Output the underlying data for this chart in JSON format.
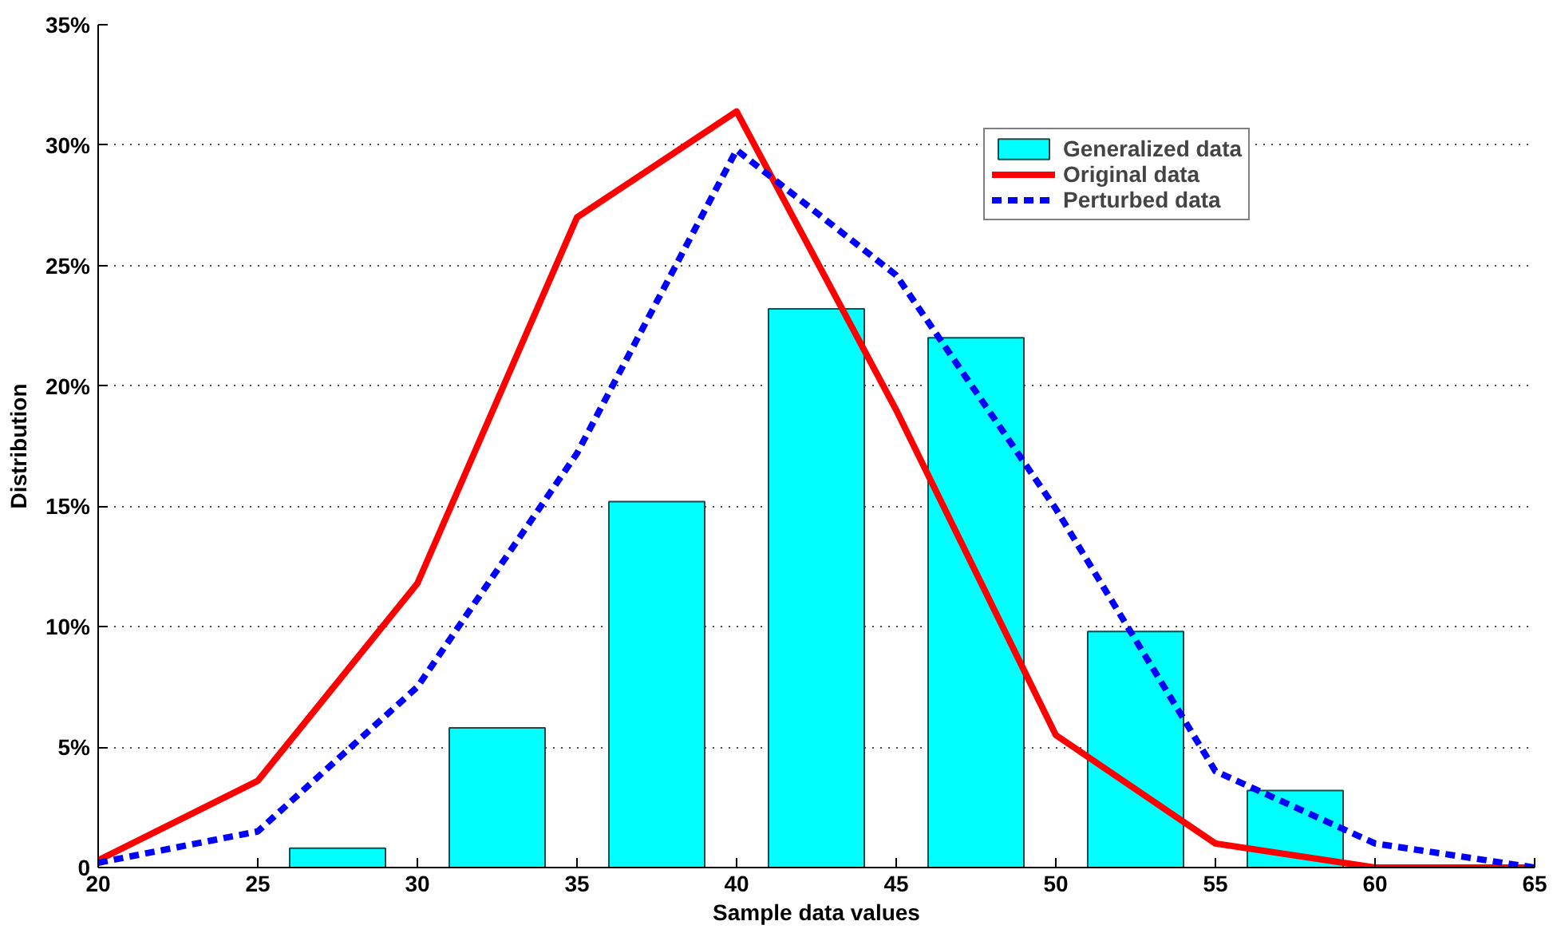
{
  "chart_data": {
    "type": "bar",
    "xlabel": "Sample data values",
    "ylabel": "Distribution",
    "x": [
      27.5,
      32.5,
      37.5,
      42.5,
      47.5,
      52.5,
      57.5
    ],
    "series": [
      {
        "name": "Generalized data",
        "color": "#00ffff",
        "values": [
          0.8,
          5.8,
          15.2,
          23.2,
          22.0,
          9.8,
          3.2
        ]
      },
      {
        "name": "Original data",
        "type": "line",
        "color": "#ff0000",
        "line_style": "solid",
        "x": [
          20,
          25,
          30,
          35,
          40,
          45,
          50,
          55,
          60,
          65
        ],
        "values": [
          0.3,
          3.6,
          11.8,
          27.0,
          31.4,
          19.0,
          5.5,
          1.0,
          0.0,
          0.0
        ]
      },
      {
        "name": "Perturbed data",
        "type": "line",
        "color": "#0000ff",
        "line_style": "dashed",
        "x": [
          20,
          25,
          30,
          35,
          40,
          45,
          50,
          55,
          60,
          65
        ],
        "values": [
          0.2,
          1.5,
          7.5,
          17.2,
          29.8,
          24.6,
          14.9,
          4.0,
          1.0,
          0.0
        ]
      }
    ],
    "xlim": [
      20,
      65
    ],
    "xticks": [
      20,
      25,
      30,
      35,
      40,
      45,
      50,
      55,
      60,
      65
    ],
    "ylim": [
      0,
      35
    ],
    "yticks": [
      {
        "value": 0,
        "label": "0"
      },
      {
        "value": 5,
        "label": "5%"
      },
      {
        "value": 10,
        "label": "10%"
      },
      {
        "value": 15,
        "label": "15%"
      },
      {
        "value": 20,
        "label": "20%"
      },
      {
        "value": 25,
        "label": "25%"
      },
      {
        "value": 30,
        "label": "30%"
      },
      {
        "value": 35,
        "label": "35%"
      }
    ],
    "grid": "y",
    "legend": "top right"
  }
}
